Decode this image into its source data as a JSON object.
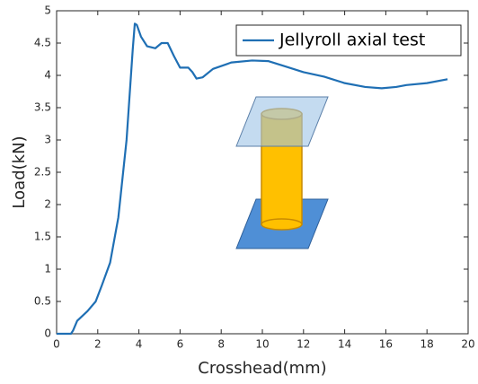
{
  "chart_data": {
    "type": "line",
    "xlabel": "Crosshead(mm)",
    "ylabel": "Load(kN)",
    "series": [
      {
        "name": "Jellyroll axial test",
        "color": "#1f6fb4",
        "x": [
          0,
          0.7,
          0.8,
          1.0,
          1.5,
          1.9,
          2.2,
          2.6,
          3.0,
          3.4,
          3.7,
          3.8,
          3.9,
          4.1,
          4.4,
          4.8,
          5.1,
          5.4,
          5.7,
          6.0,
          6.4,
          6.6,
          6.8,
          7.1,
          7.6,
          8.5,
          9.5,
          10.3,
          11,
          12,
          13,
          14,
          15,
          15.8,
          16.5,
          17,
          18,
          19
        ],
        "values": [
          0,
          0,
          0.05,
          0.2,
          0.35,
          0.5,
          0.75,
          1.1,
          1.8,
          3.0,
          4.4,
          4.8,
          4.78,
          4.6,
          4.45,
          4.42,
          4.5,
          4.5,
          4.3,
          4.12,
          4.12,
          4.05,
          3.95,
          3.97,
          4.1,
          4.2,
          4.23,
          4.22,
          4.15,
          4.05,
          3.98,
          3.88,
          3.82,
          3.8,
          3.82,
          3.85,
          3.88,
          3.94
        ]
      }
    ],
    "xlim": [
      0,
      20
    ],
    "xticks": [
      0,
      2,
      4,
      6,
      8,
      10,
      12,
      14,
      16,
      18,
      20
    ],
    "ylim": [
      0,
      5
    ],
    "yticks": [
      0,
      0.5,
      1,
      1.5,
      2,
      2.5,
      3,
      3.5,
      4,
      4.5,
      5
    ],
    "legend": "upper right"
  }
}
